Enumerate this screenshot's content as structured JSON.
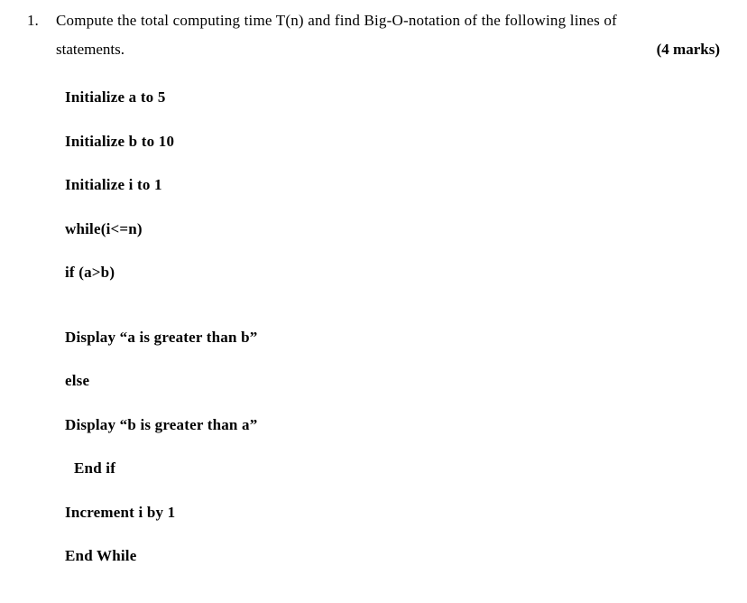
{
  "question": {
    "number": "1.",
    "line1": "Compute the total computing time T(n) and find Big-O-notation of the following lines of",
    "line2_left": "statements.",
    "marks": "(4 marks)"
  },
  "code": {
    "l1": "Initialize a to 5",
    "l2": "Initialize b to 10",
    "l3": "Initialize i to 1",
    "l4": "while(i<=n)",
    "l5": "if (a>b)",
    "l6": "Display “a is greater than b”",
    "l7": "else",
    "l8": "Display “b is greater than a”",
    "l9": "End if",
    "l10": "Increment i by 1",
    "l11": "End While"
  },
  "style": {
    "font_family": "Times New Roman",
    "font_size_pt": 12,
    "background_color": "#ffffff",
    "text_color": "#000000",
    "bold_weight": 700
  }
}
